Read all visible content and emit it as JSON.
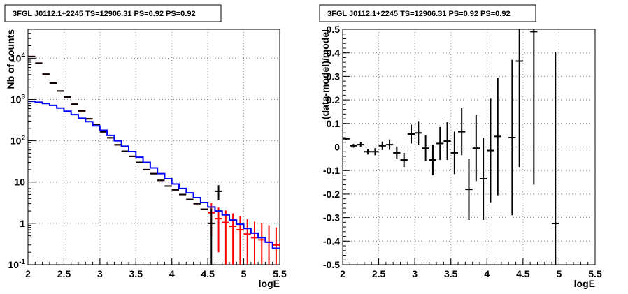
{
  "chart_data": [
    {
      "type": "line",
      "title": "3FGL J0112.1+2245 TS=12906.31 PS=0.92 PS=0.92",
      "xlabel": "logE",
      "ylabel": "Nb of counts",
      "xlim": [
        2,
        5.5
      ],
      "ylim": [
        0.1,
        50000
      ],
      "yscale": "log",
      "grid": true,
      "x_ticks": [
        "2",
        "2.5",
        "3",
        "3.5",
        "4",
        "4.5",
        "5",
        "5.5"
      ],
      "y_ticks": [
        "10^{-1}",
        "1",
        "10",
        "10^{2}",
        "10^{3}",
        "10^{4}"
      ],
      "series": [
        {
          "role": "data",
          "color": "#000000",
          "x": [
            2.05,
            2.15,
            2.25,
            2.35,
            2.45,
            2.55,
            2.65,
            2.75,
            2.85,
            2.95,
            3.05,
            3.15,
            3.25,
            3.35,
            3.45,
            3.55,
            3.65,
            3.75,
            3.85,
            3.95,
            4.05,
            4.15,
            4.25,
            4.35,
            4.45,
            4.55,
            4.65
          ],
          "y": [
            11000,
            7600,
            4100,
            2500,
            1600,
            1140,
            770,
            530,
            340,
            250,
            165,
            118,
            80,
            56,
            42,
            30,
            20,
            16,
            11,
            8,
            6.5,
            5.0,
            3.8,
            3.0,
            2.2,
            1.0,
            6.0
          ],
          "err_low": [
            0,
            0,
            0,
            0,
            0,
            0,
            0,
            0,
            0,
            0,
            0,
            0,
            0,
            0,
            0,
            0,
            0,
            0,
            0,
            0,
            0,
            0,
            0,
            0,
            0,
            0.9,
            2.4
          ],
          "err_high": [
            0,
            0,
            0,
            0,
            0,
            0,
            0,
            0,
            0,
            0,
            0,
            0,
            0,
            0,
            0,
            0,
            0,
            0,
            0,
            0,
            0,
            0,
            0,
            0,
            0,
            1.3,
            2.4
          ]
        },
        {
          "role": "model-total",
          "color": "#ff0000",
          "x": [
            2.05,
            2.15,
            2.25,
            2.35,
            2.45,
            2.55,
            2.65,
            2.75,
            2.85,
            2.95,
            3.05,
            3.15,
            3.25,
            3.35,
            3.45,
            3.55,
            3.65,
            3.75,
            3.85,
            3.95,
            4.05,
            4.15,
            4.25,
            4.35,
            4.45,
            4.55,
            4.65,
            4.75,
            4.85,
            4.95,
            5.05,
            5.15,
            5.25,
            5.35,
            5.45
          ],
          "y": [
            11000,
            7600,
            4100,
            2500,
            1600,
            1140,
            770,
            530,
            340,
            250,
            165,
            118,
            80,
            56,
            42,
            30,
            20,
            16,
            11,
            8,
            6.5,
            5.0,
            3.8,
            3.0,
            2.2,
            1.8,
            1.3,
            1.05,
            0.85,
            0.7,
            0.55,
            0.45,
            0.4,
            0.35,
            0.3
          ],
          "err": [
            0,
            0,
            0,
            0,
            0,
            0,
            0,
            0,
            0,
            0,
            0,
            0,
            0,
            0,
            0,
            0,
            0,
            0,
            0,
            0,
            0,
            0,
            0,
            0,
            0,
            1.3,
            1.1,
            1.0,
            0.9,
            0.8,
            0.7,
            0.65,
            0.6,
            0.55,
            0.5
          ]
        },
        {
          "role": "model-source",
          "color": "#0000ff",
          "x": [
            2.05,
            2.15,
            2.25,
            2.35,
            2.45,
            2.55,
            2.65,
            2.75,
            2.85,
            2.95,
            3.05,
            3.15,
            3.25,
            3.35,
            3.45,
            3.55,
            3.65,
            3.75,
            3.85,
            3.95,
            4.05,
            4.15,
            4.25,
            4.35,
            4.45,
            4.55,
            4.65,
            4.75,
            4.85,
            4.95,
            5.05,
            5.15,
            5.25,
            5.35,
            5.45
          ],
          "y": [
            900,
            860,
            800,
            720,
            620,
            520,
            430,
            350,
            290,
            230,
            180,
            135,
            100,
            74,
            55,
            40,
            30,
            22,
            16,
            12,
            9,
            7,
            5.5,
            4.2,
            3.2,
            2.5,
            2.0,
            1.6,
            1.2,
            0.95,
            0.75,
            0.58,
            0.45,
            0.35,
            0.25
          ]
        }
      ]
    },
    {
      "type": "scatter",
      "title": "3FGL J0112.1+2245 TS=12906.31 PS=0.92 PS=0.92",
      "xlabel": "logE",
      "ylabel": "(data-model)/model",
      "xlim": [
        2,
        5.5
      ],
      "ylim": [
        -0.5,
        0.5
      ],
      "grid": true,
      "x_ticks": [
        "2",
        "2.5",
        "3",
        "3.5",
        "4",
        "4.5",
        "5",
        "5.5"
      ],
      "y_ticks": [
        "-0.5",
        "-0.4",
        "-0.3",
        "-0.2",
        "-0.1",
        "0",
        "0.1",
        "0.2",
        "0.3",
        "0.4",
        "0.5"
      ],
      "series": [
        {
          "color": "#000000",
          "x": [
            2.05,
            2.15,
            2.25,
            2.35,
            2.45,
            2.55,
            2.65,
            2.75,
            2.85,
            2.95,
            3.05,
            3.15,
            3.25,
            3.35,
            3.45,
            3.55,
            3.65,
            3.75,
            3.85,
            3.95,
            4.05,
            4.15,
            4.35,
            4.45,
            4.65,
            4.95
          ],
          "y": [
            0.035,
            0.005,
            0.01,
            -0.02,
            -0.02,
            0.005,
            0.01,
            -0.025,
            -0.055,
            0.055,
            0.06,
            -0.005,
            -0.055,
            0.015,
            0.025,
            -0.025,
            0.065,
            -0.18,
            -0.005,
            -0.135,
            -0.015,
            0.045,
            0.04,
            0.365,
            0.49,
            -0.325
          ],
          "err": [
            0.005,
            0.008,
            0.01,
            0.012,
            0.015,
            0.018,
            0.022,
            0.027,
            0.03,
            0.04,
            0.05,
            0.055,
            0.065,
            0.07,
            0.08,
            0.09,
            0.1,
            0.13,
            0.14,
            0.175,
            0.22,
            0.25,
            0.33,
            0.45,
            0.65,
            0.73
          ]
        }
      ]
    }
  ]
}
